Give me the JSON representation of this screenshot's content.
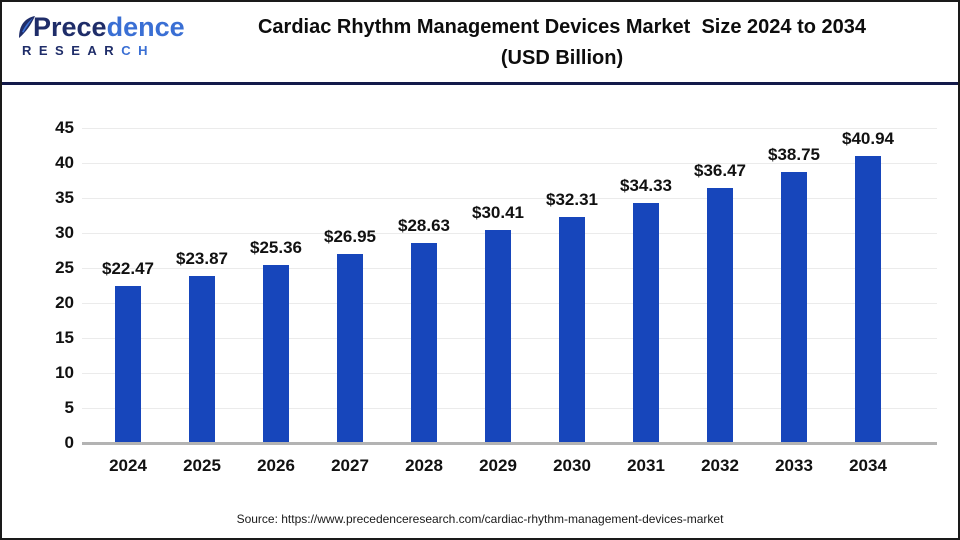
{
  "logo": {
    "word_part1": "Prece",
    "word_part2": "dence",
    "sub_part1": "RESEAR",
    "sub_part2": "CH"
  },
  "header": {
    "title_line1": "Cardiac Rhythm Management Devices Market  Size 2024 to 2034",
    "title_line2": "(USD Billion)"
  },
  "chart_data": {
    "type": "bar",
    "title": "Cardiac Rhythm Management Devices Market Size 2024 to 2034 (USD Billion)",
    "categories": [
      "2024",
      "2025",
      "2026",
      "2027",
      "2028",
      "2029",
      "2030",
      "2031",
      "2032",
      "2033",
      "2034"
    ],
    "values": [
      22.47,
      23.87,
      25.36,
      26.95,
      28.63,
      30.41,
      32.31,
      34.33,
      36.47,
      38.75,
      40.94
    ],
    "labels": [
      "$22.47",
      "$23.87",
      "$25.36",
      "$26.95",
      "$28.63",
      "$30.41",
      "$32.31",
      "$34.33",
      "$36.47",
      "$38.75",
      "$40.94"
    ],
    "xlabel": "",
    "ylabel": "",
    "ylim": [
      0,
      45
    ],
    "yticks": [
      0,
      5,
      10,
      15,
      20,
      25,
      30,
      35,
      40,
      45
    ],
    "grid": true,
    "legend": "none",
    "bar_color": "#1746bb"
  },
  "footer": {
    "source": "Source: https://www.precedenceresearch.com/cardiac-rhythm-management-devices-market"
  },
  "colors": {
    "bar": "#1746bb",
    "divider": "#131a4a",
    "gridline": "#ebebeb",
    "axis_line": "#b3b3b3",
    "logo_navy": "#1f2d69",
    "logo_blue": "#3a6fd4"
  }
}
